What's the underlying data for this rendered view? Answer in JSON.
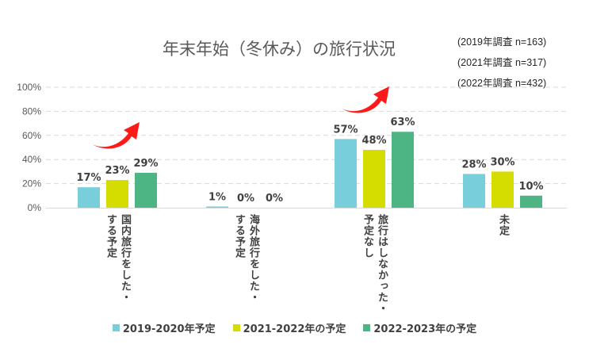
{
  "chart_data": {
    "type": "bar",
    "title": "年末年始（冬休み）の旅行状況",
    "notes": [
      "(2019年調査 n=163)",
      "(2021年調査 n=317)",
      "(2022年調査 n=432)"
    ],
    "categories": [
      [
        "国内旅行をした・",
        "する予定"
      ],
      [
        "海外旅行をした・",
        "する予定"
      ],
      [
        "旅行はしなかった・",
        "予定なし"
      ],
      [
        "未定"
      ]
    ],
    "series": [
      {
        "name": "2019-2020年予定",
        "color": "#78CFDB",
        "values": [
          17,
          1,
          57,
          28
        ]
      },
      {
        "name": "2021-2022年の予定",
        "color": "#D4DC00",
        "values": [
          23,
          0,
          48,
          30
        ]
      },
      {
        "name": "2022-2023年の予定",
        "color": "#4DB583",
        "values": [
          29,
          0,
          63,
          10
        ]
      }
    ],
    "yticks": [
      "0%",
      "20%",
      "40%",
      "60%",
      "80%",
      "100%"
    ],
    "ylim": [
      0,
      100
    ],
    "grid": true,
    "legend": "bottom",
    "annotations": [
      "red-arrow-up-right over 国内旅行",
      "red-arrow-up-right over 旅行はしなかった"
    ]
  }
}
